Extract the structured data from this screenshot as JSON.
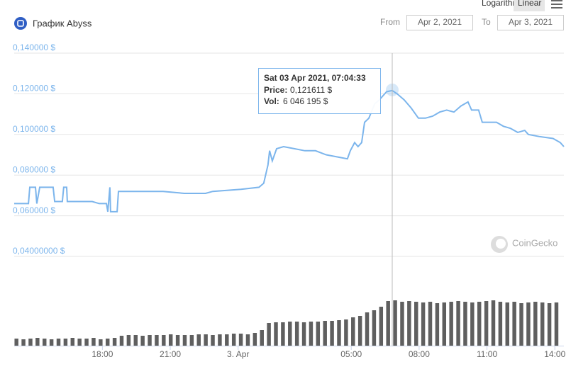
{
  "chart_data": {
    "type": "line",
    "title": "График Abyss",
    "scale_buttons": [
      "Logarithmic",
      "Linear"
    ],
    "active_scale": "Linear",
    "range": {
      "from_label": "From",
      "from": "Apr 2, 2021",
      "to_label": "To",
      "to": "Apr 3, 2021"
    },
    "watermark": "CoinGecko",
    "tooltip": {
      "title": "Sat 03 Apr 2021, 07:04:33",
      "price_label": "Price:",
      "price": "0,121611 $",
      "vol_label": "Vol:",
      "vol": "6 046 195 $"
    },
    "xlim": [
      14.1,
      38.4
    ],
    "xticks": [
      {
        "value": 18,
        "label": "18:00"
      },
      {
        "value": 21,
        "label": "21:00"
      },
      {
        "value": 24,
        "label": "3. Apr"
      },
      {
        "value": 29,
        "label": "05:00"
      },
      {
        "value": 32,
        "label": "08:00"
      },
      {
        "value": 35,
        "label": "11:00"
      },
      {
        "value": 38,
        "label": "14:00"
      }
    ],
    "ylim": [
      0.04,
      0.14
    ],
    "yticks": [
      {
        "value": 0.14,
        "label": "0,140000 $"
      },
      {
        "value": 0.12,
        "label": "0,120000 $"
      },
      {
        "value": 0.1,
        "label": "0,100000 $"
      },
      {
        "value": 0.08,
        "label": "0,080000 $"
      },
      {
        "value": 0.06,
        "label": "0,060000 $"
      },
      {
        "value": 0.04,
        "label": "0,04000000 $"
      }
    ],
    "y2lim": [
      0,
      105
    ],
    "grid": true,
    "price": {
      "color": "#7cb5ec",
      "x": [
        14.1,
        14.73,
        14.79,
        15.04,
        15.1,
        15.23,
        15.82,
        15.89,
        16.23,
        16.29,
        16.42,
        16.45,
        17.55,
        17.86,
        18.18,
        18.24,
        18.33,
        18.36,
        18.65,
        18.71,
        19.74,
        20.68,
        21.62,
        22.56,
        22.88,
        24.13,
        24.92,
        25.13,
        25.32,
        25.39,
        25.51,
        25.7,
        26.01,
        26.48,
        26.95,
        27.42,
        27.89,
        28.36,
        28.83,
        28.96,
        29.15,
        29.3,
        29.46,
        29.59,
        29.78,
        30.03,
        30.24,
        30.56,
        30.81,
        31.03,
        31.34,
        31.65,
        31.97,
        32.28,
        32.6,
        32.91,
        33.22,
        33.54,
        33.85,
        34.16,
        34.32,
        34.63,
        34.79,
        35.1,
        35.42,
        35.73,
        36.04,
        36.36,
        36.67,
        36.83,
        37.3,
        37.92,
        38.24,
        38.4
      ],
      "values": [
        0.066,
        0.066,
        0.074,
        0.074,
        0.066,
        0.074,
        0.074,
        0.067,
        0.067,
        0.074,
        0.074,
        0.067,
        0.067,
        0.066,
        0.066,
        0.062,
        0.074,
        0.062,
        0.062,
        0.072,
        0.072,
        0.072,
        0.071,
        0.071,
        0.072,
        0.073,
        0.074,
        0.076,
        0.085,
        0.092,
        0.087,
        0.093,
        0.094,
        0.093,
        0.092,
        0.092,
        0.09,
        0.089,
        0.088,
        0.092,
        0.096,
        0.094,
        0.096,
        0.106,
        0.108,
        0.115,
        0.117,
        0.121,
        0.1216,
        0.12,
        0.117,
        0.113,
        0.108,
        0.108,
        0.109,
        0.111,
        0.112,
        0.111,
        0.114,
        0.116,
        0.112,
        0.112,
        0.106,
        0.106,
        0.106,
        0.104,
        0.103,
        0.101,
        0.102,
        0.1,
        0.099,
        0.098,
        0.096,
        0.094
      ]
    },
    "volume": {
      "color": "#5f5f5f",
      "axis": "y2",
      "x": [
        14.2,
        14.51,
        14.82,
        15.13,
        15.44,
        15.75,
        16.06,
        16.37,
        16.68,
        16.99,
        17.3,
        17.61,
        17.92,
        18.23,
        18.54,
        18.85,
        19.16,
        19.47,
        19.78,
        20.09,
        20.4,
        20.71,
        21.02,
        21.33,
        21.64,
        21.95,
        22.26,
        22.57,
        22.88,
        23.19,
        23.5,
        23.81,
        24.12,
        24.43,
        24.74,
        25.05,
        25.36,
        25.67,
        25.98,
        26.29,
        26.6,
        26.91,
        27.22,
        27.53,
        27.84,
        28.15,
        28.46,
        28.77,
        29.08,
        29.39,
        29.7,
        30.01,
        30.32,
        30.63,
        30.94,
        31.25,
        31.56,
        31.87,
        32.18,
        32.49,
        32.8,
        33.11,
        33.42,
        33.73,
        34.04,
        34.35,
        34.66,
        34.97,
        35.28,
        35.59,
        35.9,
        36.21,
        36.52,
        36.83,
        37.14,
        37.45,
        37.76,
        38.07
      ],
      "values": [
        10,
        9,
        10,
        11,
        10,
        9,
        10,
        10,
        11,
        10,
        10,
        11,
        9,
        10,
        11,
        14,
        15,
        15,
        14,
        15,
        15,
        15,
        16,
        15,
        15,
        15,
        16,
        16,
        15,
        16,
        16,
        17,
        17,
        16,
        18,
        22,
        32,
        33,
        33,
        34,
        34,
        33,
        34,
        34,
        35,
        35,
        36,
        37,
        40,
        42,
        47,
        50,
        55,
        63,
        64,
        62,
        63,
        62,
        61,
        62,
        60,
        61,
        62,
        63,
        62,
        61,
        62,
        63,
        64,
        62,
        61,
        62,
        60,
        61,
        62,
        61,
        60,
        61
      ]
    }
  }
}
